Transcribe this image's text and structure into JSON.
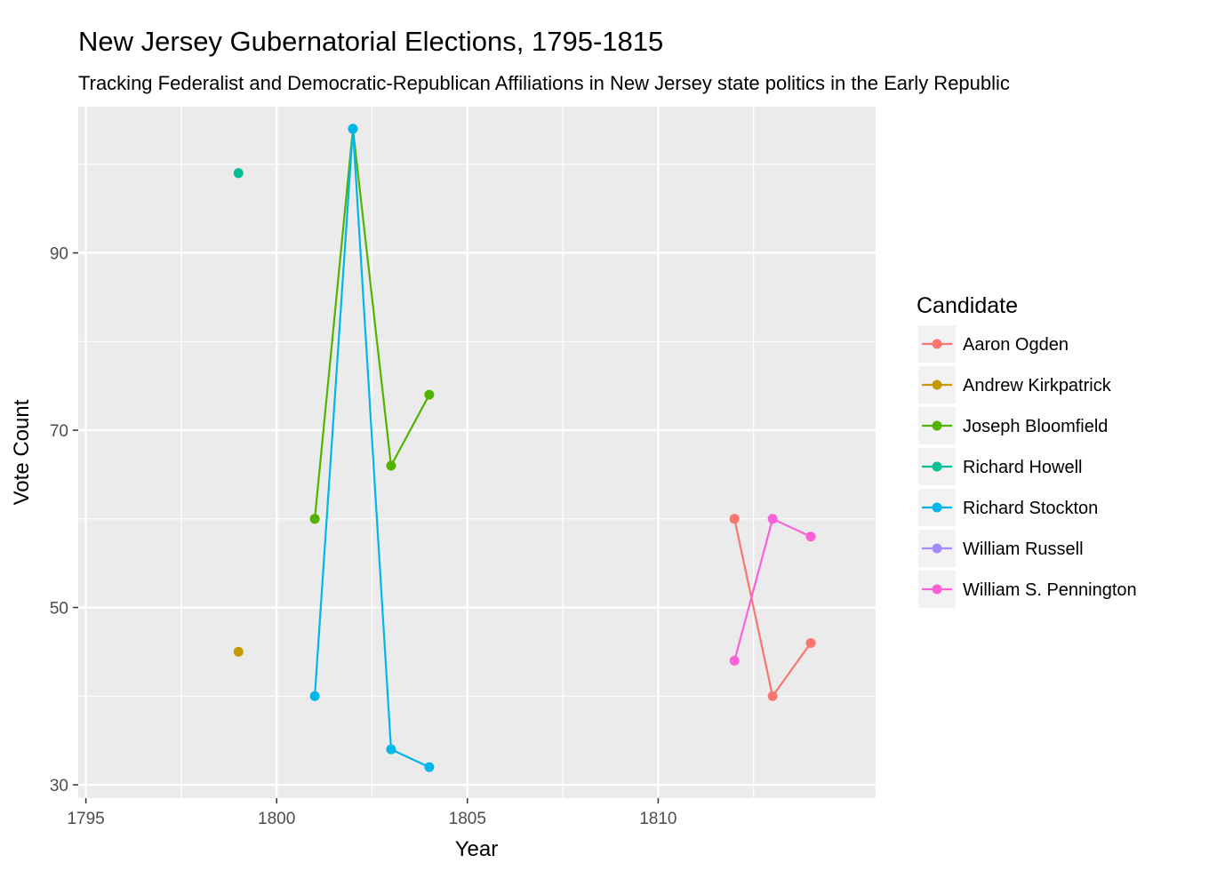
{
  "chart_data": {
    "type": "line",
    "title": "New Jersey Gubernatorial Elections, 1795-1815",
    "subtitle": "Tracking Federalist and Democratic-Republican Affiliations in New Jersey state politics in the Early Republic",
    "xlabel": "Year",
    "ylabel": "Vote Count",
    "xlim": [
      1794.8,
      1815.7
    ],
    "ylim": [
      28.5,
      106.5
    ],
    "x_ticks": [
      1795,
      1800,
      1805,
      1810
    ],
    "y_ticks": [
      30,
      50,
      70,
      90
    ],
    "grid": true,
    "legend_title": "Candidate",
    "legend_position": "right",
    "series": [
      {
        "name": "Aaron Ogden",
        "color": "#F8766D",
        "points": [
          {
            "x": 1812,
            "y": 60
          },
          {
            "x": 1813,
            "y": 40
          },
          {
            "x": 1814,
            "y": 46
          }
        ]
      },
      {
        "name": "Andrew Kirkpatrick",
        "color": "#C49A00",
        "points": [
          {
            "x": 1799,
            "y": 45
          }
        ]
      },
      {
        "name": "Joseph Bloomfield",
        "color": "#53B400",
        "points": [
          {
            "x": 1801,
            "y": 60
          },
          {
            "x": 1802,
            "y": 104
          },
          {
            "x": 1803,
            "y": 66
          },
          {
            "x": 1804,
            "y": 74
          }
        ]
      },
      {
        "name": "Richard Howell",
        "color": "#00C094",
        "points": [
          {
            "x": 1799,
            "y": 99
          }
        ]
      },
      {
        "name": "Richard Stockton",
        "color": "#00B6EB",
        "points": [
          {
            "x": 1801,
            "y": 40
          },
          {
            "x": 1802,
            "y": 104
          },
          {
            "x": 1803,
            "y": 34
          },
          {
            "x": 1804,
            "y": 32
          }
        ]
      },
      {
        "name": "William Russell",
        "color": "#A58AFF",
        "points": []
      },
      {
        "name": "William S. Pennington",
        "color": "#FB61D7",
        "points": [
          {
            "x": 1812,
            "y": 44
          },
          {
            "x": 1813,
            "y": 60
          },
          {
            "x": 1814,
            "y": 58
          }
        ]
      }
    ]
  }
}
